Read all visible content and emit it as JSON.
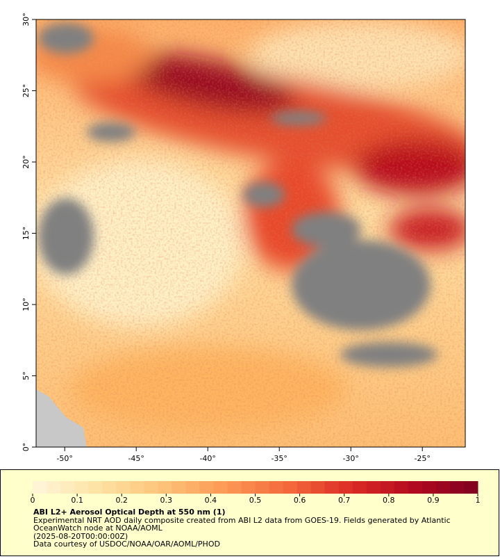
{
  "map": {
    "xlim": [
      -52,
      -22
    ],
    "ylim": [
      0,
      30
    ],
    "xticks": [
      {
        "value": -50,
        "label": "-50°"
      },
      {
        "value": -45,
        "label": "-45°"
      },
      {
        "value": -40,
        "label": "-40°"
      },
      {
        "value": -35,
        "label": "-35°"
      },
      {
        "value": -30,
        "label": "-30°"
      },
      {
        "value": -25,
        "label": "-25°"
      }
    ],
    "yticks": [
      {
        "value": 0,
        "label": "0°"
      },
      {
        "value": 5,
        "label": "5°"
      },
      {
        "value": 10,
        "label": "10°"
      },
      {
        "value": 15,
        "label": "15°"
      },
      {
        "value": 20,
        "label": "20°"
      },
      {
        "value": 25,
        "label": "25°"
      },
      {
        "value": 30,
        "label": "30°"
      }
    ]
  },
  "colorbar": {
    "range": [
      0,
      1
    ],
    "ticks": [
      0,
      0.1,
      0.2,
      0.3,
      0.4,
      0.5,
      0.6,
      0.7,
      0.8,
      0.9,
      1
    ],
    "colors": [
      "#fff7dc",
      "#fee3a5",
      "#fdc57a",
      "#fc9a55",
      "#f46a3c",
      "#dc2c26",
      "#b2091f",
      "#7f0020"
    ]
  },
  "legend": {
    "title": "ABI L2+ Aerosol Optical Depth at 550 nm (1)",
    "lines": [
      "Experimental NRT AOD daily composite created from ABI L2 data from GOES-19. Fields generated by Atlantic",
      "OceanWatch node at NOAA/AOML",
      "(2025-08-20T00:00:00Z)",
      "Data courtesy of USDOC/NOAA/OAR/AOML/PHOD"
    ]
  }
}
